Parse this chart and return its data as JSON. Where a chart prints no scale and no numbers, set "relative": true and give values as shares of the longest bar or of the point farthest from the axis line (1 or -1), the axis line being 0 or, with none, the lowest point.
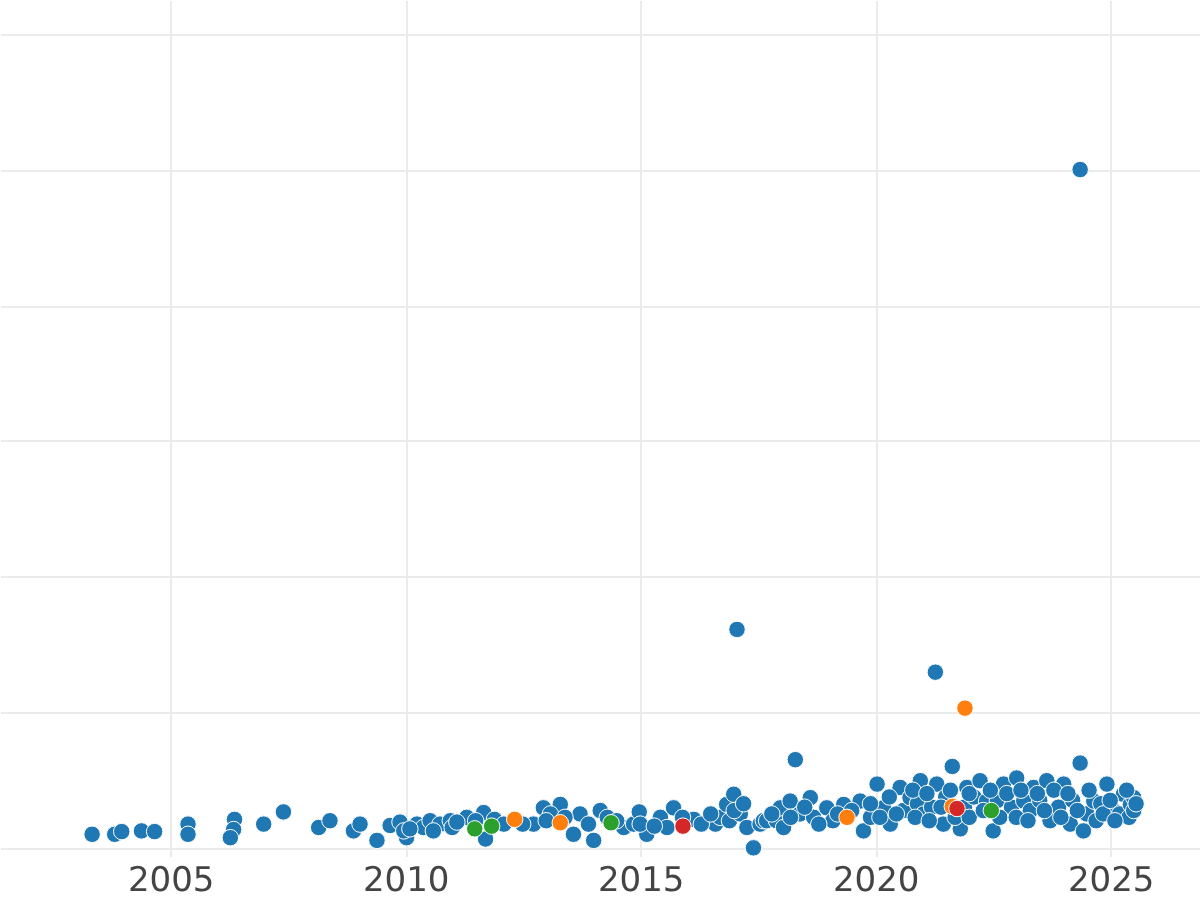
{
  "chart_data": {
    "type": "scatter",
    "relative": true,
    "marker": "circle",
    "grid": true,
    "xlim": [
      2001.38,
      2026.91
    ],
    "xticks": [
      2005,
      2010,
      2015,
      2020,
      2025
    ],
    "series": [
      {
        "color": "#1f77b4",
        "x": [
          2003.34,
          2003.82,
          2003.97,
          2004.39,
          2004.67,
          2005.38,
          2005.38,
          2006.37,
          2006.35,
          2006.28,
          2006.99,
          2007.41,
          2008.16,
          2008.4,
          2008.9,
          2009.04,
          2009.4,
          2009.68,
          2009.89,
          2010.03,
          2009.97,
          2010.25,
          2010.39,
          2010.53,
          2010.74,
          2010.96,
          2011.31,
          2011.67,
          2011.71,
          2012.73,
          2012.94,
          2013.3,
          2013.09,
          2013.58,
          2013.72,
          2014.01,
          2014.15,
          2014.65,
          2014.86,
          2014.98,
          2015.14,
          2015.43,
          2015.71,
          2015.57,
          2016.14,
          2016.6,
          2016.7,
          2016.84,
          2016.9,
          2016.99,
          2017.06,
          2017.13,
          2017.27,
          2017.41,
          2017.55,
          2017.62,
          2017.69,
          2017.9,
          2017.98,
          2018.05,
          2018.19,
          2018.3,
          2018.4,
          2018.62,
          2018.69,
          2018.97,
          2019.1,
          2019.33,
          2019.68,
          2019.75,
          2019.9,
          2020.04,
          2020.18,
          2020.32,
          2020.53,
          2020.6,
          2020.74,
          2020.9,
          2020.96,
          2021.03,
          2021.2,
          2021.28,
          2021.31,
          2021.45,
          2021.5,
          2021.64,
          2021.81,
          2021.9,
          2021.95,
          2022.1,
          2022.23,
          2022.37,
          2022.51,
          2022.6,
          2022.73,
          2022.9,
          2023.01,
          2023.16,
          2023.3,
          2023.37,
          2023.5,
          2023.65,
          2023.72,
          2023.9,
          2024.01,
          2024.15,
          2024.2,
          2024.36,
          2024.36,
          2024.43,
          2024.5,
          2024.65,
          2024.8,
          2024.93,
          2025.07,
          2025.2,
          2025.28,
          2025.4,
          2025.43,
          2025.5,
          2010.1,
          2010.6,
          2011.0,
          2011.1,
          2011.5,
          2011.9,
          2012.1,
          2012.5,
          2013.0,
          2013.4,
          2013.9,
          2014.3,
          2014.5,
          2015.0,
          2015.3,
          2015.9,
          2016.3,
          2016.5,
          2017.0,
          2017.2,
          2017.8,
          2018.2,
          2018.5,
          2018.8,
          2019.2,
          2019.5,
          2019.9,
          2020.1,
          2020.3,
          2020.45,
          2020.8,
          2020.85,
          2021.1,
          2021.15,
          2021.4,
          2021.6,
          2021.7,
          2022.0,
          2022.0,
          2022.3,
          2022.45,
          2022.65,
          2022.8,
          2023.0,
          2023.1,
          2023.25,
          2023.45,
          2023.6,
          2023.8,
          2023.95,
          2024.1,
          2024.3,
          2024.55,
          2024.7,
          2024.85,
          2025.0,
          2025.1,
          2025.35,
          2025.5,
          2025.55
        ],
        "values": [
          0.02,
          0.02,
          0.024,
          0.025,
          0.024,
          0.035,
          0.02,
          0.042,
          0.027,
          0.015,
          0.035,
          0.053,
          0.03,
          0.04,
          0.025,
          0.035,
          0.011,
          0.033,
          0.038,
          0.015,
          0.025,
          0.035,
          0.03,
          0.04,
          0.035,
          0.04,
          0.045,
          0.052,
          0.013,
          0.035,
          0.059,
          0.064,
          0.05,
          0.02,
          0.05,
          0.011,
          0.055,
          0.03,
          0.035,
          0.053,
          0.02,
          0.045,
          0.059,
          0.03,
          0.042,
          0.035,
          0.045,
          0.064,
          0.04,
          0.079,
          0.322,
          0.05,
          0.03,
          0,
          0.035,
          0.04,
          0.04,
          0.04,
          0.059,
          0.03,
          0.069,
          0.13,
          0.05,
          0.074,
          0.045,
          0.059,
          0.04,
          0.064,
          0.069,
          0.025,
          0.045,
          0.094,
          0.059,
          0.035,
          0.089,
          0.055,
          0.074,
          0.065,
          0.099,
          0.05,
          0.06,
          0.259,
          0.094,
          0.035,
          0.075,
          0.12,
          0.028,
          0.06,
          0.089,
          0.075,
          0.099,
          0.069,
          0.025,
          0.07,
          0.094,
          0.06,
          0.103,
          0.069,
          0.055,
          0.089,
          0.07,
          0.099,
          0.04,
          0.06,
          0.094,
          0.035,
          0.07,
          0.125,
          1,
          0.025,
          0.05,
          0.069,
          0.065,
          0.094,
          0.055,
          0.05,
          0.079,
          0.045,
          0.064,
          0.074,
          0.028,
          0.025,
          0.03,
          0.038,
          0.04,
          0.042,
          0.035,
          0.035,
          0.04,
          0.045,
          0.035,
          0.045,
          0.04,
          0.035,
          0.032,
          0.045,
          0.035,
          0.05,
          0.055,
          0.065,
          0.05,
          0.045,
          0.06,
          0.035,
          0.05,
          0.055,
          0.065,
          0.045,
          0.075,
          0.05,
          0.085,
          0.045,
          0.08,
          0.04,
          0.06,
          0.085,
          0.045,
          0.045,
          0.08,
          0.055,
          0.085,
          0.045,
          0.08,
          0.045,
          0.085,
          0.04,
          0.08,
          0.055,
          0.085,
          0.045,
          0.08,
          0.055,
          0.085,
          0.04,
          0.05,
          0.07,
          0.04,
          0.085,
          0.055,
          0.065
        ]
      },
      {
        "color": "#ff7f0e",
        "x": [
          2012.33,
          2013.3,
          2019.4,
          2021.64,
          2021.91
        ],
        "values": [
          0.042,
          0.037,
          0.045,
          0.061,
          0.206
        ]
      },
      {
        "color": "#2ca02c",
        "x": [
          2011.48,
          2011.84,
          2014.38,
          2022.47
        ],
        "values": [
          0.028,
          0.032,
          0.037,
          0.055
        ]
      },
      {
        "color": "#d62728",
        "x": [
          2015.91,
          2021.74
        ],
        "values": [
          0.032,
          0.058
        ]
      }
    ]
  }
}
